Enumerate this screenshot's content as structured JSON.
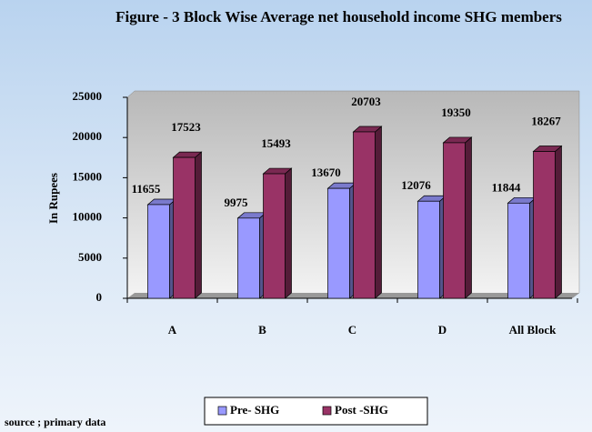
{
  "chart_data": {
    "type": "bar3d",
    "title": "Figure - 3 Block Wise Average net household income SHG members",
    "y_label": "In Rupees",
    "note": "source ; primary data",
    "categories": [
      "A",
      "B",
      "C",
      "D",
      "All Block"
    ],
    "series": [
      {
        "name": "Pre- SHG",
        "color": "#9999ff",
        "values": [
          11655,
          9975,
          13670,
          12076,
          11844
        ]
      },
      {
        "name": "Post -SHG",
        "color": "#993366",
        "values": [
          17523,
          15493,
          20703,
          19350,
          18267
        ]
      }
    ],
    "ylim": [
      0,
      25000
    ],
    "yticks": [
      0,
      5000,
      10000,
      15000,
      20000,
      25000
    ],
    "legend": "bottom"
  }
}
